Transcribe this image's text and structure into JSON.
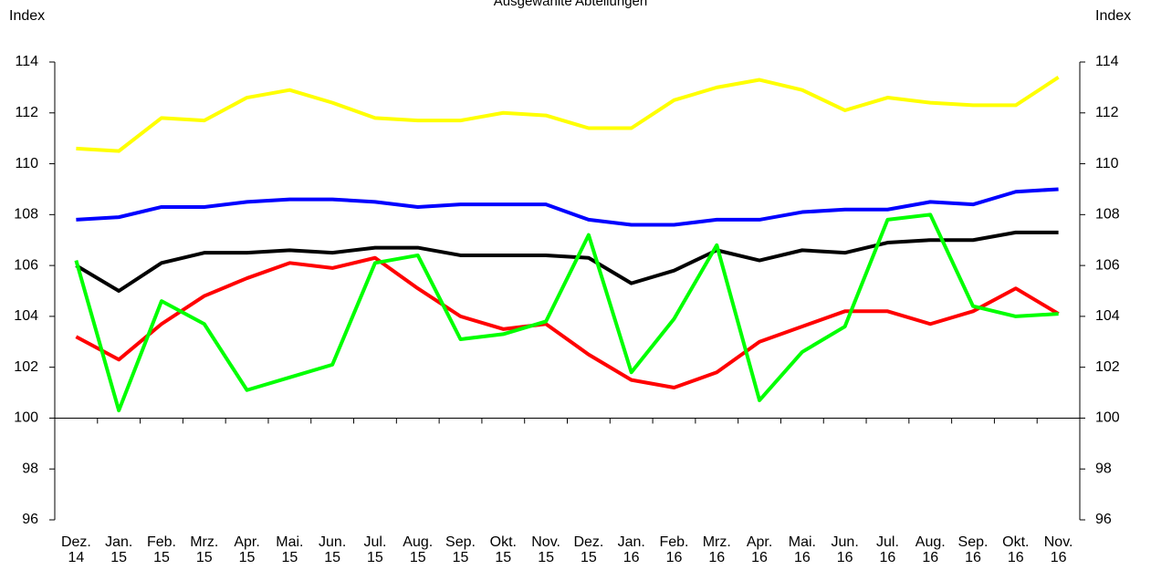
{
  "chart_data": {
    "type": "line",
    "title": "Ausgewählte Abteilungen",
    "ylabel": "Index",
    "y2label": "Index",
    "categories": [
      [
        "Dez.",
        "14"
      ],
      [
        "Jan.",
        "15"
      ],
      [
        "Feb.",
        "15"
      ],
      [
        "Mrz.",
        "15"
      ],
      [
        "Apr.",
        "15"
      ],
      [
        "Mai.",
        "15"
      ],
      [
        "Jun.",
        "15"
      ],
      [
        "Jul.",
        "15"
      ],
      [
        "Aug.",
        "15"
      ],
      [
        "Sep.",
        "15"
      ],
      [
        "Okt.",
        "15"
      ],
      [
        "Nov.",
        "15"
      ],
      [
        "Dez.",
        "15"
      ],
      [
        "Jan.",
        "16"
      ],
      [
        "Feb.",
        "16"
      ],
      [
        "Mrz.",
        "16"
      ],
      [
        "Apr.",
        "16"
      ],
      [
        "Mai.",
        "16"
      ],
      [
        "Jun.",
        "16"
      ],
      [
        "Jul.",
        "16"
      ],
      [
        "Aug.",
        "16"
      ],
      [
        "Sep.",
        "16"
      ],
      [
        "Okt.",
        "16"
      ],
      [
        "Nov.",
        "16"
      ]
    ],
    "series": [
      {
        "color": "#ffff00",
        "values": [
          110.6,
          110.5,
          111.8,
          111.7,
          112.6,
          112.9,
          112.4,
          111.8,
          111.7,
          111.7,
          112.0,
          111.9,
          111.4,
          111.4,
          112.5,
          113.0,
          113.3,
          112.9,
          112.1,
          112.6,
          112.4,
          112.3,
          112.3,
          113.4
        ]
      },
      {
        "color": "#0000ff",
        "values": [
          107.8,
          107.9,
          108.3,
          108.3,
          108.5,
          108.6,
          108.6,
          108.5,
          108.3,
          108.4,
          108.4,
          108.4,
          107.8,
          107.6,
          107.6,
          107.8,
          107.8,
          108.1,
          108.2,
          108.2,
          108.5,
          108.4,
          108.9,
          109.0
        ]
      },
      {
        "color": "#000000",
        "values": [
          106.0,
          105.0,
          106.1,
          106.5,
          106.5,
          106.6,
          106.5,
          106.7,
          106.7,
          106.4,
          106.4,
          106.4,
          106.3,
          105.3,
          105.8,
          106.6,
          106.2,
          106.6,
          106.5,
          106.9,
          107.0,
          107.0,
          107.3,
          107.3
        ]
      },
      {
        "color": "#ff0000",
        "values": [
          103.2,
          102.3,
          103.7,
          104.8,
          105.5,
          106.1,
          105.9,
          106.3,
          105.1,
          104.0,
          103.5,
          103.7,
          102.5,
          101.5,
          101.2,
          101.8,
          103.0,
          103.6,
          104.2,
          104.2,
          103.7,
          104.2,
          105.1,
          104.1
        ]
      },
      {
        "color": "#00ff00",
        "values": [
          106.2,
          100.3,
          104.6,
          103.7,
          101.1,
          101.6,
          102.1,
          106.1,
          106.4,
          103.1,
          103.3,
          103.8,
          107.2,
          101.8,
          103.9,
          106.8,
          100.7,
          102.6,
          103.6,
          107.8,
          108.0,
          104.4,
          104.0,
          104.1
        ]
      }
    ],
    "ylim": [
      96,
      114
    ],
    "yticks": [
      96,
      98,
      100,
      102,
      104,
      106,
      108,
      110,
      112,
      114
    ],
    "y2lim": [
      96,
      114
    ],
    "y2ticks": [
      96,
      98,
      100,
      102,
      104,
      106,
      108,
      110,
      112,
      114
    ],
    "x_axis_crosses": 100,
    "grid": false
  }
}
